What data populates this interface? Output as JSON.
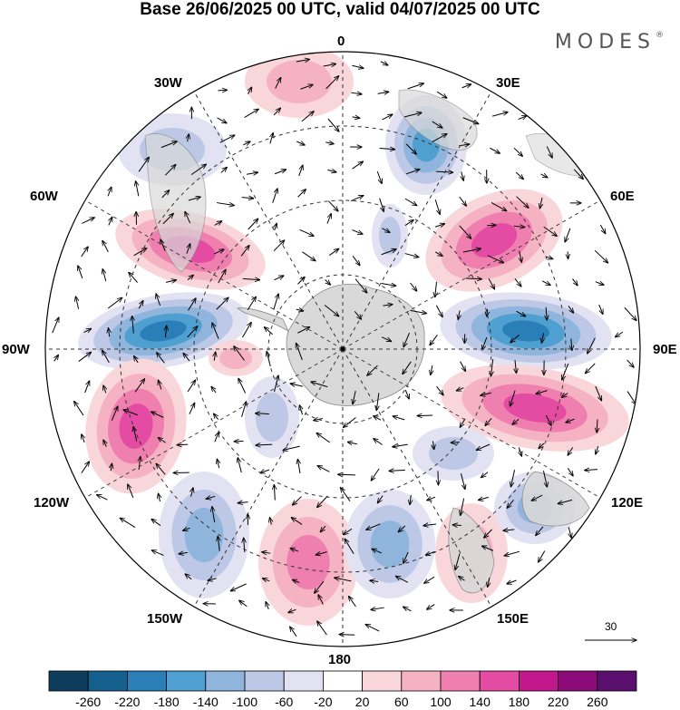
{
  "title": "Base 26/06/2025 00 UTC, valid 04/07/2025 00 UTC",
  "brand": "MODES",
  "brand_mark": "®",
  "lon_labels": {
    "n0": "0",
    "n30e": "30E",
    "n60e": "60E",
    "n90e": "90E",
    "n120e": "120E",
    "n150e": "150E",
    "n180": "180",
    "n150w": "150W",
    "n120w": "120W",
    "n90w": "90W",
    "n60w": "60W",
    "n30w": "30W"
  },
  "reference_vector": {
    "value": "30"
  },
  "colorbar": {
    "labels": [
      "-260",
      "-220",
      "-180",
      "-140",
      "-100",
      "-60",
      "-20",
      "20",
      "60",
      "100",
      "140",
      "180",
      "220",
      "260"
    ],
    "colors": [
      "#0d3c5c",
      "#155f8f",
      "#2a7fb8",
      "#4f9fd0",
      "#8fb5dc",
      "#bcc8e6",
      "#e2e2f2",
      "#ffffff",
      "#f9d6da",
      "#f5b2c2",
      "#ef7fae",
      "#e34ca2",
      "#c2178d",
      "#8c0a7a",
      "#5a0f6e"
    ]
  },
  "anomaly_colors": {
    "neg_strong": "#2a7fb8",
    "neg_mid": "#4f9fd0",
    "neg_weak": "#8fb5dc",
    "neg_faint": "#bcc8e6",
    "neg_trace": "#e2e2f2",
    "pos_trace": "#f9d6da",
    "pos_faint": "#f5b2c2",
    "pos_mid": "#ef7fae",
    "pos_strong": "#e34ca2",
    "land": "#d9d9d9"
  }
}
